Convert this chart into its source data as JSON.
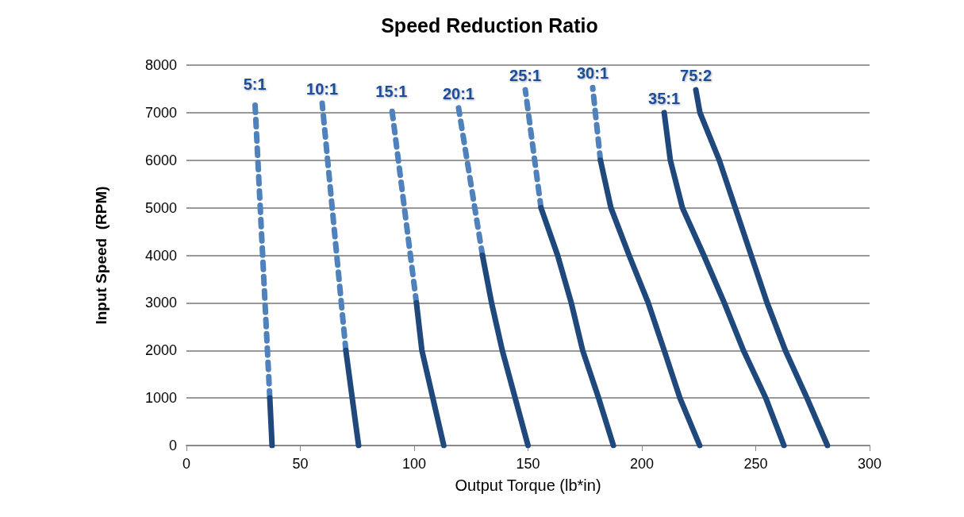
{
  "chart_data": {
    "type": "line",
    "title": "Speed Reduction Ratio",
    "xlabel": "Output Torque (lb*in)",
    "ylabel": "Input Speed  (RPM)",
    "xlim": [
      0,
      300
    ],
    "xticks": [
      0,
      50,
      100,
      150,
      200,
      250,
      300
    ],
    "ylim": [
      0,
      8000
    ],
    "yticks": [
      0,
      1000,
      2000,
      3000,
      4000,
      5000,
      6000,
      7000,
      8000
    ],
    "grid": "y",
    "legend": false,
    "marker": "none",
    "series": [
      {
        "color": "#1f497d",
        "line_style": "solid",
        "x": [
          37.6,
          36.6
        ],
        "values": [
          0,
          1000
        ]
      },
      {
        "name": "5:1",
        "color": "#4f81bd",
        "line_style": "dashed",
        "x": [
          36.6,
          30.0
        ],
        "values": [
          1000,
          7300
        ]
      },
      {
        "color": "#1f497d",
        "line_style": "solid",
        "x": [
          75.6,
          70.0
        ],
        "values": [
          0,
          2000
        ]
      },
      {
        "name": "10:1",
        "color": "#4f81bd",
        "line_style": "dashed",
        "x": [
          70.0,
          59.6
        ],
        "values": [
          2000,
          7200
        ]
      },
      {
        "color": "#1f497d",
        "line_style": "solid",
        "x": [
          113,
          103.4,
          101
        ],
        "values": [
          0,
          2000,
          3000
        ]
      },
      {
        "name": "15:1",
        "color": "#4f81bd",
        "line_style": "dashed",
        "x": [
          101,
          90
        ],
        "values": [
          3000,
          7150
        ]
      },
      {
        "color": "#1f497d",
        "line_style": "solid",
        "x": [
          150,
          138.7,
          134,
          130
        ],
        "values": [
          0,
          2000,
          3000,
          4000
        ]
      },
      {
        "name": "20:1",
        "color": "#4f81bd",
        "line_style": "dashed",
        "x": [
          130,
          119.5
        ],
        "values": [
          4000,
          7100
        ]
      },
      {
        "color": "#1f497d",
        "line_style": "solid",
        "x": [
          187.5,
          181,
          174,
          169,
          163,
          155.7
        ],
        "values": [
          0,
          1000,
          2000,
          3000,
          4000,
          5000
        ]
      },
      {
        "name": "25:1",
        "color": "#4f81bd",
        "line_style": "dashed",
        "x": [
          155.7,
          148.8
        ],
        "values": [
          5000,
          7480
        ]
      },
      {
        "color": "#1f497d",
        "line_style": "solid",
        "x": [
          225.4,
          216.7,
          209.8,
          202.8,
          194.4,
          186.4,
          181.8
        ],
        "values": [
          0,
          1000,
          2000,
          3000,
          4000,
          5000,
          6000
        ]
      },
      {
        "name": "30:1",
        "color": "#4f81bd",
        "line_style": "dashed",
        "x": [
          181.8,
          178.4
        ],
        "values": [
          6000,
          7530
        ]
      },
      {
        "name": "35:1",
        "color": "#1f497d",
        "line_style": "solid",
        "x": [
          262.4,
          254.4,
          244.6,
          236.2,
          227.2,
          217.8,
          212.5,
          209.8
        ],
        "values": [
          0,
          1000,
          2000,
          3000,
          4000,
          5000,
          6000,
          7000
        ]
      },
      {
        "name": "75:2",
        "color": "#1f497d",
        "line_style": "solid",
        "x": [
          281.5,
          272.5,
          263,
          255,
          248,
          241,
          234,
          225.5,
          223.7
        ],
        "values": [
          0,
          1000,
          2000,
          3000,
          4000,
          5000,
          6000,
          7000,
          7480
        ]
      }
    ]
  }
}
